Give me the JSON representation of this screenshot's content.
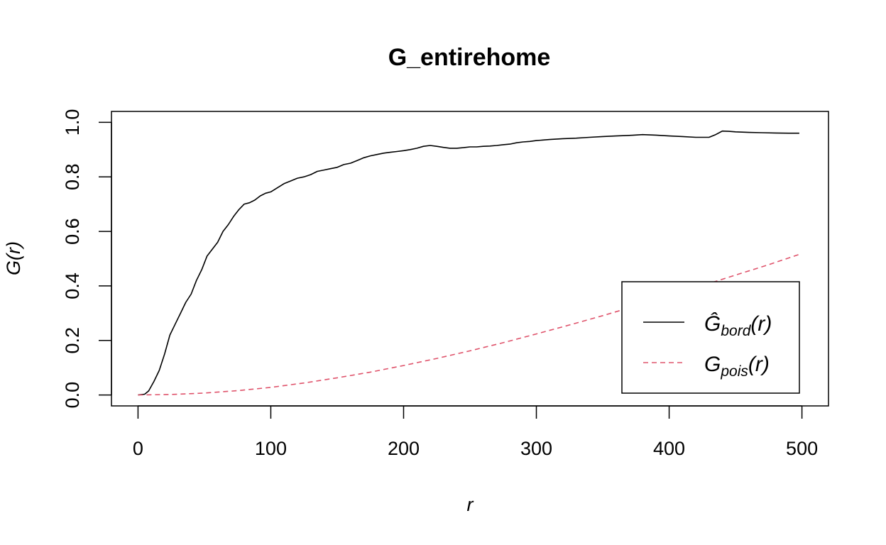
{
  "chart_data": {
    "type": "line",
    "title": "G_entirehome",
    "xlabel": "r",
    "ylabel": "G(r)",
    "xlim": [
      -20,
      520
    ],
    "ylim": [
      -0.04,
      1.04
    ],
    "xticks": [
      0,
      100,
      200,
      300,
      400,
      500
    ],
    "yticks": [
      0.0,
      0.2,
      0.4,
      0.6,
      0.8,
      1.0
    ],
    "xtick_labels": [
      "0",
      "100",
      "200",
      "300",
      "400",
      "500"
    ],
    "ytick_labels": [
      "0.0",
      "0.2",
      "0.4",
      "0.6",
      "0.8",
      "1.0"
    ],
    "grid": false,
    "legend_position": "bottom-right",
    "series": [
      {
        "name": "Ĝ_bord(r)",
        "name_main": "Ĝ",
        "name_sub": "bord",
        "name_tail": "(r)",
        "color": "#000000",
        "style": "solid",
        "x": [
          0,
          5,
          8,
          12,
          16,
          20,
          24,
          28,
          32,
          36,
          40,
          44,
          48,
          52,
          56,
          60,
          64,
          68,
          72,
          76,
          80,
          84,
          88,
          92,
          96,
          100,
          105,
          110,
          115,
          120,
          125,
          130,
          135,
          140,
          145,
          150,
          155,
          160,
          165,
          170,
          175,
          180,
          185,
          190,
          195,
          200,
          205,
          210,
          215,
          220,
          225,
          230,
          235,
          240,
          245,
          250,
          255,
          260,
          265,
          270,
          275,
          280,
          285,
          290,
          295,
          300,
          310,
          320,
          330,
          340,
          350,
          360,
          370,
          380,
          390,
          400,
          410,
          420,
          430,
          435,
          440,
          445,
          450,
          460,
          470,
          480,
          490,
          498
        ],
        "y": [
          0.0,
          0.003,
          0.015,
          0.05,
          0.09,
          0.15,
          0.22,
          0.26,
          0.3,
          0.34,
          0.37,
          0.42,
          0.46,
          0.51,
          0.535,
          0.56,
          0.6,
          0.625,
          0.655,
          0.68,
          0.7,
          0.705,
          0.715,
          0.73,
          0.74,
          0.745,
          0.76,
          0.775,
          0.785,
          0.795,
          0.8,
          0.808,
          0.82,
          0.825,
          0.83,
          0.835,
          0.845,
          0.85,
          0.86,
          0.87,
          0.877,
          0.882,
          0.887,
          0.89,
          0.893,
          0.896,
          0.9,
          0.905,
          0.912,
          0.915,
          0.912,
          0.908,
          0.905,
          0.905,
          0.907,
          0.91,
          0.91,
          0.912,
          0.913,
          0.915,
          0.918,
          0.92,
          0.925,
          0.928,
          0.93,
          0.933,
          0.937,
          0.94,
          0.942,
          0.945,
          0.948,
          0.95,
          0.952,
          0.955,
          0.953,
          0.95,
          0.948,
          0.945,
          0.945,
          0.955,
          0.968,
          0.967,
          0.965,
          0.963,
          0.962,
          0.961,
          0.96,
          0.96
        ]
      },
      {
        "name": "G_pois(r)",
        "name_main": "G",
        "name_sub": "pois",
        "name_tail": "(r)",
        "color": "#DF536B",
        "style": "dashed",
        "x": [
          0,
          25,
          50,
          75,
          100,
          125,
          150,
          175,
          200,
          225,
          250,
          275,
          300,
          325,
          350,
          375,
          400,
          425,
          450,
          475,
          498
        ],
        "y": [
          0.0,
          0.002,
          0.007,
          0.016,
          0.028,
          0.044,
          0.063,
          0.084,
          0.108,
          0.134,
          0.162,
          0.192,
          0.224,
          0.257,
          0.291,
          0.327,
          0.364,
          0.401,
          0.44,
          0.478,
          0.516
        ]
      }
    ]
  }
}
